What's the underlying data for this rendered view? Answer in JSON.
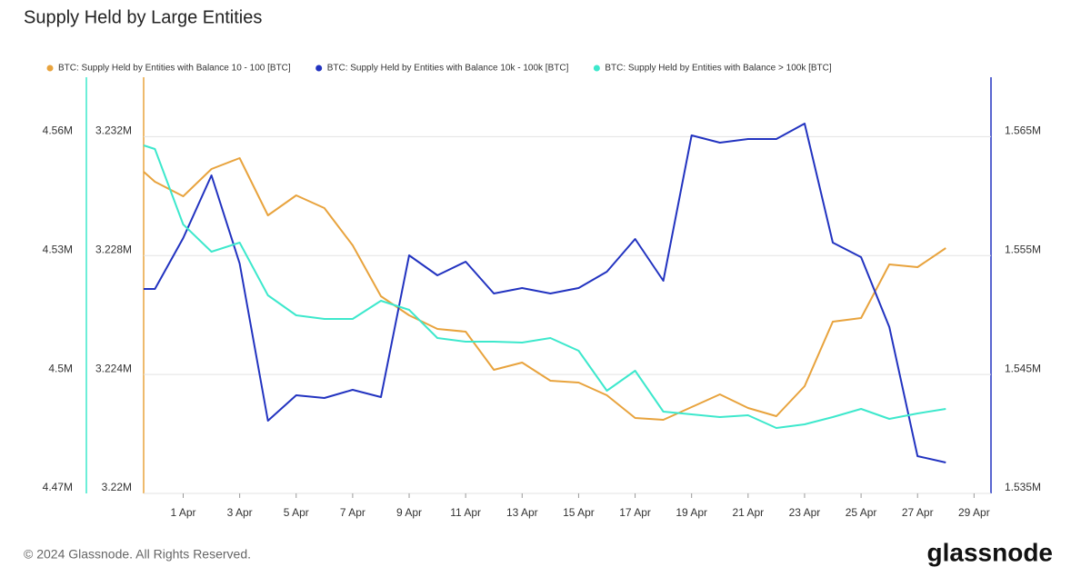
{
  "chart_data": {
    "type": "line",
    "title": "Supply Held by Large Entities",
    "footer": "© 2024 Glassnode. All Rights Reserved.",
    "logo": "glassnode",
    "x": [
      -0.4,
      0,
      1,
      2,
      3,
      4,
      5,
      6,
      7,
      8,
      9,
      10,
      11,
      12,
      13,
      14,
      15,
      16,
      17,
      18,
      19,
      20,
      21,
      22,
      23,
      24,
      25,
      26,
      27,
      28
    ],
    "xlim": [
      -0.4,
      29.6
    ],
    "xticks": [
      {
        "value": 1,
        "label": "1 Apr"
      },
      {
        "value": 3,
        "label": "3 Apr"
      },
      {
        "value": 5,
        "label": "5 Apr"
      },
      {
        "value": 7,
        "label": "7 Apr"
      },
      {
        "value": 9,
        "label": "9 Apr"
      },
      {
        "value": 11,
        "label": "11 Apr"
      },
      {
        "value": 13,
        "label": "13 Apr"
      },
      {
        "value": 15,
        "label": "15 Apr"
      },
      {
        "value": 17,
        "label": "17 Apr"
      },
      {
        "value": 19,
        "label": "19 Apr"
      },
      {
        "value": 21,
        "label": "21 Apr"
      },
      {
        "value": 23,
        "label": "23 Apr"
      },
      {
        "value": 25,
        "label": "25 Apr"
      },
      {
        "value": 27,
        "label": "27 Apr"
      },
      {
        "value": 29,
        "label": "29 Apr"
      }
    ],
    "ylim": [
      4470000,
      4575000
    ],
    "yticks": [
      {
        "value": 4470000,
        "label": "4.47M"
      },
      {
        "value": 4500000,
        "label": "4.5M"
      },
      {
        "value": 4530000,
        "label": "4.53M"
      },
      {
        "value": 4560000,
        "label": "4.56M"
      }
    ],
    "y3lim": [
      3220000,
      3234000
    ],
    "y3ticks": [
      {
        "value": 3220000,
        "label": "3.22M"
      },
      {
        "value": 3224000,
        "label": "3.224M"
      },
      {
        "value": 3228000,
        "label": "3.228M"
      },
      {
        "value": 3232000,
        "label": "3.232M"
      }
    ],
    "y2lim": [
      1535000,
      1570000
    ],
    "y2ticks": [
      {
        "value": 1535000,
        "label": "1.535M"
      },
      {
        "value": 1545000,
        "label": "1.545M"
      },
      {
        "value": 1555000,
        "label": "1.555M"
      },
      {
        "value": 1565000,
        "label": "1.565M"
      }
    ],
    "grid": true,
    "series": [
      {
        "name": "BTC: Supply Held by Entities with Balance 10 - 100 [BTC]",
        "color": "#e8a33d",
        "axis": "y3",
        "values": [
          3230821,
          3230485,
          3229996,
          3230913,
          3231280,
          3229354,
          3230026,
          3229598,
          3228345,
          3226633,
          3225991,
          3225533,
          3225441,
          3224157,
          3224402,
          3223790,
          3223729,
          3223301,
          3222537,
          3222476,
          3222904,
          3223332,
          3222873,
          3222598,
          3223607,
          3225777,
          3225900,
          3227703,
          3227611,
          3228253
        ]
      },
      {
        "name": "BTC: Supply Held by Entities with Balance 10k - 100k [BTC]",
        "color": "#2233c0",
        "axis": "y2",
        "values": [
          1552195,
          1552195,
          1556474,
          1561747,
          1554334,
          1541114,
          1543253,
          1543024,
          1543712,
          1543101,
          1555022,
          1553341,
          1554487,
          1551812,
          1552271,
          1551812,
          1552271,
          1553646,
          1556398,
          1552882,
          1565109,
          1564498,
          1564804,
          1564804,
          1566103,
          1556092,
          1554869,
          1548985,
          1538133,
          1537598
        ]
      },
      {
        "name": "BTC: Supply Held by Entities with Balance > 100k [BTC]",
        "color": "#3de8cc",
        "axis": "y",
        "values": [
          4557807,
          4556890,
          4537861,
          4530983,
          4533276,
          4519979,
          4514935,
          4514018,
          4514018,
          4518603,
          4516311,
          4509203,
          4508286,
          4508286,
          4508057,
          4509203,
          4505994,
          4495906,
          4500950,
          4490633,
          4489946,
          4489258,
          4489716,
          4486507,
          4487424,
          4489258,
          4491321,
          4488799,
          4490175,
          4491321
        ]
      }
    ]
  }
}
